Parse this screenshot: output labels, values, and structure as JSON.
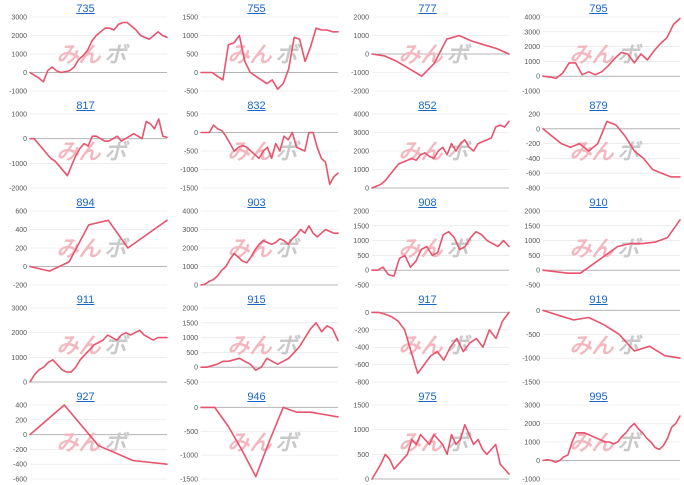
{
  "style": {
    "line_color": "#e8536e",
    "grid_color": "#e2e2e2",
    "zero_line_color": "#b5b5b5",
    "title_color": "#1a66c8"
  },
  "watermark": {
    "part1": "みん",
    "part2": "ボ"
  },
  "chart_data": [
    {
      "type": "line",
      "title": "735",
      "yticks": [
        -1000,
        0,
        1000,
        2000,
        3000
      ],
      "ylim": [
        -1000,
        3000
      ],
      "x": [
        0,
        1,
        2,
        3,
        4,
        5,
        6,
        7,
        8,
        9,
        10,
        11,
        12,
        13,
        14,
        15,
        16,
        17,
        18,
        19,
        20,
        21,
        22,
        23,
        24,
        25,
        26,
        27,
        28,
        29,
        30,
        31
      ],
      "values": [
        0,
        -150,
        -300,
        -500,
        100,
        300,
        100,
        0,
        50,
        100,
        300,
        700,
        900,
        1200,
        1700,
        2000,
        2200,
        2400,
        2400,
        2300,
        2600,
        2700,
        2700,
        2500,
        2300,
        2000,
        1900,
        1800,
        2000,
        2200,
        2000,
        1900
      ]
    },
    {
      "type": "line",
      "title": "755",
      "yticks": [
        -500,
        0,
        500,
        1000,
        1500
      ],
      "ylim": [
        -500,
        1500
      ],
      "x": [
        0,
        1,
        2,
        3,
        4,
        5,
        6,
        7,
        8,
        9,
        10,
        11,
        12,
        13,
        14,
        15,
        16,
        17,
        18,
        19,
        20,
        21,
        22,
        23,
        24,
        25
      ],
      "values": [
        0,
        0,
        0,
        -100,
        -200,
        750,
        800,
        1000,
        300,
        0,
        -100,
        -200,
        -300,
        -200,
        -450,
        -300,
        100,
        950,
        900,
        300,
        700,
        1200,
        1150,
        1150,
        1100,
        1100
      ]
    },
    {
      "type": "line",
      "title": "777",
      "yticks": [
        -2000,
        -1000,
        0,
        1000,
        2000
      ],
      "ylim": [
        -2000,
        2000
      ],
      "x": [
        0,
        1,
        2,
        3,
        4,
        5,
        6,
        7,
        8,
        9,
        10,
        11
      ],
      "values": [
        0,
        -100,
        -400,
        -800,
        -1200,
        -500,
        800,
        1000,
        700,
        500,
        300,
        0
      ]
    },
    {
      "type": "line",
      "title": "795",
      "yticks": [
        -1000,
        0,
        1000,
        2000,
        3000,
        4000
      ],
      "ylim": [
        -1000,
        4000
      ],
      "x": [
        0,
        1,
        2,
        3,
        4,
        5,
        6,
        7,
        8,
        9,
        10,
        11,
        12,
        13,
        14,
        15,
        16,
        17,
        18,
        19,
        20,
        21
      ],
      "values": [
        0,
        -50,
        -150,
        200,
        900,
        900,
        100,
        300,
        100,
        300,
        700,
        1200,
        1600,
        1500,
        900,
        1500,
        1100,
        1700,
        2200,
        2600,
        3500,
        3900
      ]
    },
    {
      "type": "line",
      "title": "817",
      "yticks": [
        -2000,
        -1000,
        0,
        1000
      ],
      "ylim": [
        -2000,
        1000
      ],
      "x": [
        0,
        1,
        2,
        3,
        4,
        5,
        6,
        7,
        8,
        9,
        10,
        11,
        12,
        13,
        14,
        15,
        16,
        17,
        18,
        19,
        20,
        21,
        22,
        23,
        24,
        25,
        26,
        27,
        28,
        29,
        30,
        31,
        32,
        33
      ],
      "values": [
        0,
        0,
        -200,
        -400,
        -600,
        -800,
        -900,
        -1100,
        -1300,
        -1500,
        -1100,
        -700,
        -400,
        -200,
        -300,
        100,
        100,
        0,
        -100,
        -100,
        0,
        100,
        -100,
        0,
        100,
        200,
        100,
        0,
        700,
        600,
        400,
        800,
        100,
        50
      ]
    },
    {
      "type": "line",
      "title": "832",
      "yticks": [
        -1500,
        -1000,
        -500,
        0,
        500
      ],
      "ylim": [
        -1500,
        500
      ],
      "x": [
        0,
        1,
        2,
        3,
        4,
        5,
        6,
        7,
        8,
        9,
        10,
        11,
        12,
        13,
        14,
        15,
        16,
        17,
        18,
        19,
        20,
        21,
        22,
        23,
        24,
        25,
        26,
        27,
        28,
        29,
        30,
        31,
        32,
        33
      ],
      "values": [
        0,
        0,
        0,
        200,
        100,
        50,
        -100,
        -300,
        -500,
        -400,
        -350,
        -400,
        -500,
        -600,
        -700,
        -500,
        -400,
        -700,
        -300,
        -500,
        -100,
        -200,
        0,
        -400,
        -450,
        -500,
        0,
        0,
        -400,
        -700,
        -800,
        -1400,
        -1200,
        -1100
      ]
    },
    {
      "type": "line",
      "title": "852",
      "yticks": [
        0,
        1000,
        2000,
        3000,
        4000
      ],
      "ylim": [
        0,
        4000
      ],
      "x": [
        0,
        1,
        2,
        3,
        4,
        5,
        6,
        7,
        8,
        9,
        10,
        11,
        12,
        13,
        14,
        15,
        16,
        17,
        18,
        19,
        20,
        21,
        22,
        23,
        24,
        25,
        26,
        27,
        28,
        29,
        30,
        31
      ],
      "values": [
        0,
        100,
        200,
        400,
        700,
        1000,
        1300,
        1400,
        1500,
        1600,
        1500,
        1800,
        1900,
        1700,
        1600,
        2000,
        2200,
        1800,
        2400,
        2000,
        2400,
        2600,
        2200,
        2000,
        2400,
        2500,
        2600,
        2700,
        3300,
        3400,
        3300,
        3600
      ]
    },
    {
      "type": "line",
      "title": "879",
      "yticks": [
        -800,
        -600,
        -400,
        -200,
        0,
        200
      ],
      "ylim": [
        -800,
        200
      ],
      "x": [
        0,
        1,
        2,
        3,
        4,
        5,
        6,
        7,
        8,
        9,
        10,
        11,
        12,
        13,
        14,
        15
      ],
      "values": [
        0,
        -100,
        -200,
        -250,
        -200,
        -300,
        -200,
        100,
        50,
        -100,
        -300,
        -400,
        -550,
        -600,
        -650,
        -650
      ]
    },
    {
      "type": "line",
      "title": "894",
      "yticks": [
        -200,
        0,
        200,
        400,
        600
      ],
      "ylim": [
        -200,
        600
      ],
      "x": [
        0,
        1,
        2,
        3,
        4,
        5,
        6,
        7
      ],
      "values": [
        0,
        -50,
        50,
        450,
        500,
        200,
        350,
        500
      ]
    },
    {
      "type": "line",
      "title": "903",
      "yticks": [
        0,
        1000,
        2000,
        3000,
        4000
      ],
      "ylim": [
        0,
        4000
      ],
      "x": [
        0,
        1,
        2,
        3,
        4,
        5,
        6,
        7,
        8,
        9,
        10,
        11,
        12,
        13,
        14,
        15,
        16,
        17,
        18,
        19,
        20,
        21,
        22,
        23,
        24,
        25,
        26,
        27,
        28,
        29,
        30,
        31,
        32,
        33
      ],
      "values": [
        0,
        50,
        200,
        300,
        500,
        800,
        1000,
        1400,
        1700,
        1500,
        1300,
        1200,
        1500,
        1900,
        2200,
        2400,
        2300,
        2200,
        2300,
        2500,
        2400,
        2200,
        2500,
        2700,
        3000,
        2800,
        3200,
        2800,
        2600,
        2800,
        3000,
        2900,
        2800,
        2800
      ]
    },
    {
      "type": "line",
      "title": "908",
      "yticks": [
        -500,
        0,
        500,
        1000,
        1500,
        2000
      ],
      "ylim": [
        -500,
        2000
      ],
      "x": [
        0,
        1,
        2,
        3,
        4,
        5,
        6,
        7,
        8,
        9,
        10,
        11,
        12,
        13,
        14,
        15,
        16,
        17,
        18,
        19,
        20,
        21,
        22,
        23,
        24,
        25
      ],
      "values": [
        0,
        0,
        100,
        -150,
        -200,
        400,
        500,
        100,
        300,
        700,
        800,
        500,
        600,
        1200,
        1300,
        1100,
        700,
        800,
        1100,
        1300,
        1200,
        1000,
        900,
        800,
        1000,
        800
      ]
    },
    {
      "type": "line",
      "title": "910",
      "yticks": [
        -500,
        0,
        500,
        1000,
        1500,
        2000
      ],
      "ylim": [
        -500,
        2000
      ],
      "x": [
        0,
        1,
        2,
        3,
        4,
        5,
        6,
        7,
        8,
        9,
        10,
        11
      ],
      "values": [
        0,
        -50,
        -100,
        -100,
        200,
        500,
        800,
        900,
        900,
        950,
        1100,
        1700
      ]
    },
    {
      "type": "line",
      "title": "911",
      "yticks": [
        0,
        1000,
        2000,
        3000
      ],
      "ylim": [
        0,
        3000
      ],
      "x": [
        0,
        1,
        2,
        3,
        4,
        5,
        6,
        7,
        8,
        9,
        10,
        11,
        12,
        13,
        14,
        15,
        16,
        17,
        18,
        19,
        20,
        21,
        22,
        23,
        24,
        25,
        26,
        27,
        28,
        29,
        30
      ],
      "values": [
        0,
        300,
        500,
        600,
        800,
        900,
        700,
        500,
        400,
        400,
        600,
        900,
        1100,
        1300,
        1500,
        1600,
        1700,
        1900,
        1800,
        1700,
        1900,
        2000,
        1900,
        2000,
        2100,
        1900,
        1800,
        1700,
        1800,
        1800,
        1800
      ]
    },
    {
      "type": "line",
      "title": "915",
      "yticks": [
        -500,
        0,
        500,
        1000,
        1500,
        2000
      ],
      "ylim": [
        -500,
        2000
      ],
      "x": [
        0,
        1,
        2,
        3,
        4,
        5,
        6,
        7,
        8,
        9,
        10,
        11,
        12,
        13,
        14,
        15,
        16,
        17,
        18,
        19,
        20,
        21,
        22,
        23,
        24,
        25
      ],
      "values": [
        0,
        0,
        50,
        100,
        200,
        200,
        250,
        300,
        200,
        100,
        -100,
        0,
        300,
        200,
        100,
        200,
        300,
        500,
        700,
        1000,
        1300,
        1500,
        1200,
        1400,
        1300,
        900
      ]
    },
    {
      "type": "line",
      "title": "917",
      "yticks": [
        -800,
        -600,
        -400,
        -200,
        0
      ],
      "ylim": [
        -800,
        50
      ],
      "x": [
        0,
        1,
        2,
        3,
        4,
        5,
        6,
        7,
        8,
        9,
        10,
        11,
        12,
        13,
        14,
        15,
        16,
        17,
        18,
        19,
        20,
        21
      ],
      "values": [
        0,
        0,
        -20,
        -50,
        -100,
        -200,
        -450,
        -700,
        -600,
        -500,
        -450,
        -550,
        -400,
        -300,
        -450,
        -350,
        -300,
        -400,
        -200,
        -300,
        -100,
        0
      ]
    },
    {
      "type": "line",
      "title": "919",
      "yticks": [
        -1500,
        -1000,
        -500,
        0
      ],
      "ylim": [
        -1500,
        50
      ],
      "x": [
        0,
        1,
        2,
        3,
        4,
        5,
        6,
        7,
        8,
        9
      ],
      "values": [
        0,
        -100,
        -200,
        -150,
        -300,
        -500,
        -850,
        -750,
        -950,
        -1000
      ]
    },
    {
      "type": "line",
      "title": "927",
      "yticks": [
        -600,
        -400,
        -200,
        0,
        200,
        400
      ],
      "ylim": [
        -600,
        400
      ],
      "x": [
        0,
        1,
        2,
        3,
        4
      ],
      "values": [
        0,
        400,
        -150,
        -350,
        -400
      ]
    },
    {
      "type": "line",
      "title": "946",
      "yticks": [
        -1500,
        -1000,
        -500,
        0
      ],
      "ylim": [
        -1500,
        50
      ],
      "x": [
        0,
        1,
        2,
        3,
        4,
        5,
        6,
        7,
        8,
        9,
        10
      ],
      "values": [
        0,
        0,
        -400,
        -900,
        -1450,
        -700,
        0,
        -100,
        -100,
        -150,
        -200
      ]
    },
    {
      "type": "line",
      "title": "975",
      "yticks": [
        0,
        500,
        1000,
        1500
      ],
      "ylim": [
        0,
        1500
      ],
      "x": [
        0,
        1,
        2,
        3,
        4,
        5,
        6,
        7,
        8,
        9,
        10,
        11,
        12,
        13,
        14,
        15,
        16,
        17,
        18,
        19,
        20,
        21,
        22,
        23,
        24,
        25,
        26,
        27,
        28,
        29,
        30,
        31
      ],
      "values": [
        0,
        150,
        300,
        500,
        400,
        200,
        300,
        400,
        500,
        800,
        700,
        900,
        800,
        700,
        900,
        800,
        700,
        500,
        900,
        700,
        800,
        1100,
        900,
        700,
        800,
        600,
        500,
        600,
        700,
        300,
        200,
        100
      ]
    },
    {
      "type": "line",
      "title": "995",
      "yticks": [
        -1000,
        0,
        1000,
        2000,
        3000
      ],
      "ylim": [
        -1000,
        3000
      ],
      "x": [
        0,
        1,
        2,
        3,
        4,
        5,
        6,
        7,
        8,
        9,
        10,
        11,
        12,
        13,
        14,
        15,
        16,
        17,
        18,
        19,
        20,
        21,
        22,
        23,
        24,
        25,
        26,
        27,
        28,
        29,
        30,
        31,
        32,
        33
      ],
      "values": [
        0,
        50,
        0,
        -100,
        0,
        200,
        300,
        1000,
        1500,
        1500,
        1500,
        1400,
        1300,
        1200,
        1100,
        1000,
        1000,
        900,
        1000,
        1300,
        1500,
        1800,
        2000,
        1700,
        1500,
        1200,
        1000,
        700,
        600,
        800,
        1200,
        1800,
        2000,
        2400
      ]
    }
  ]
}
